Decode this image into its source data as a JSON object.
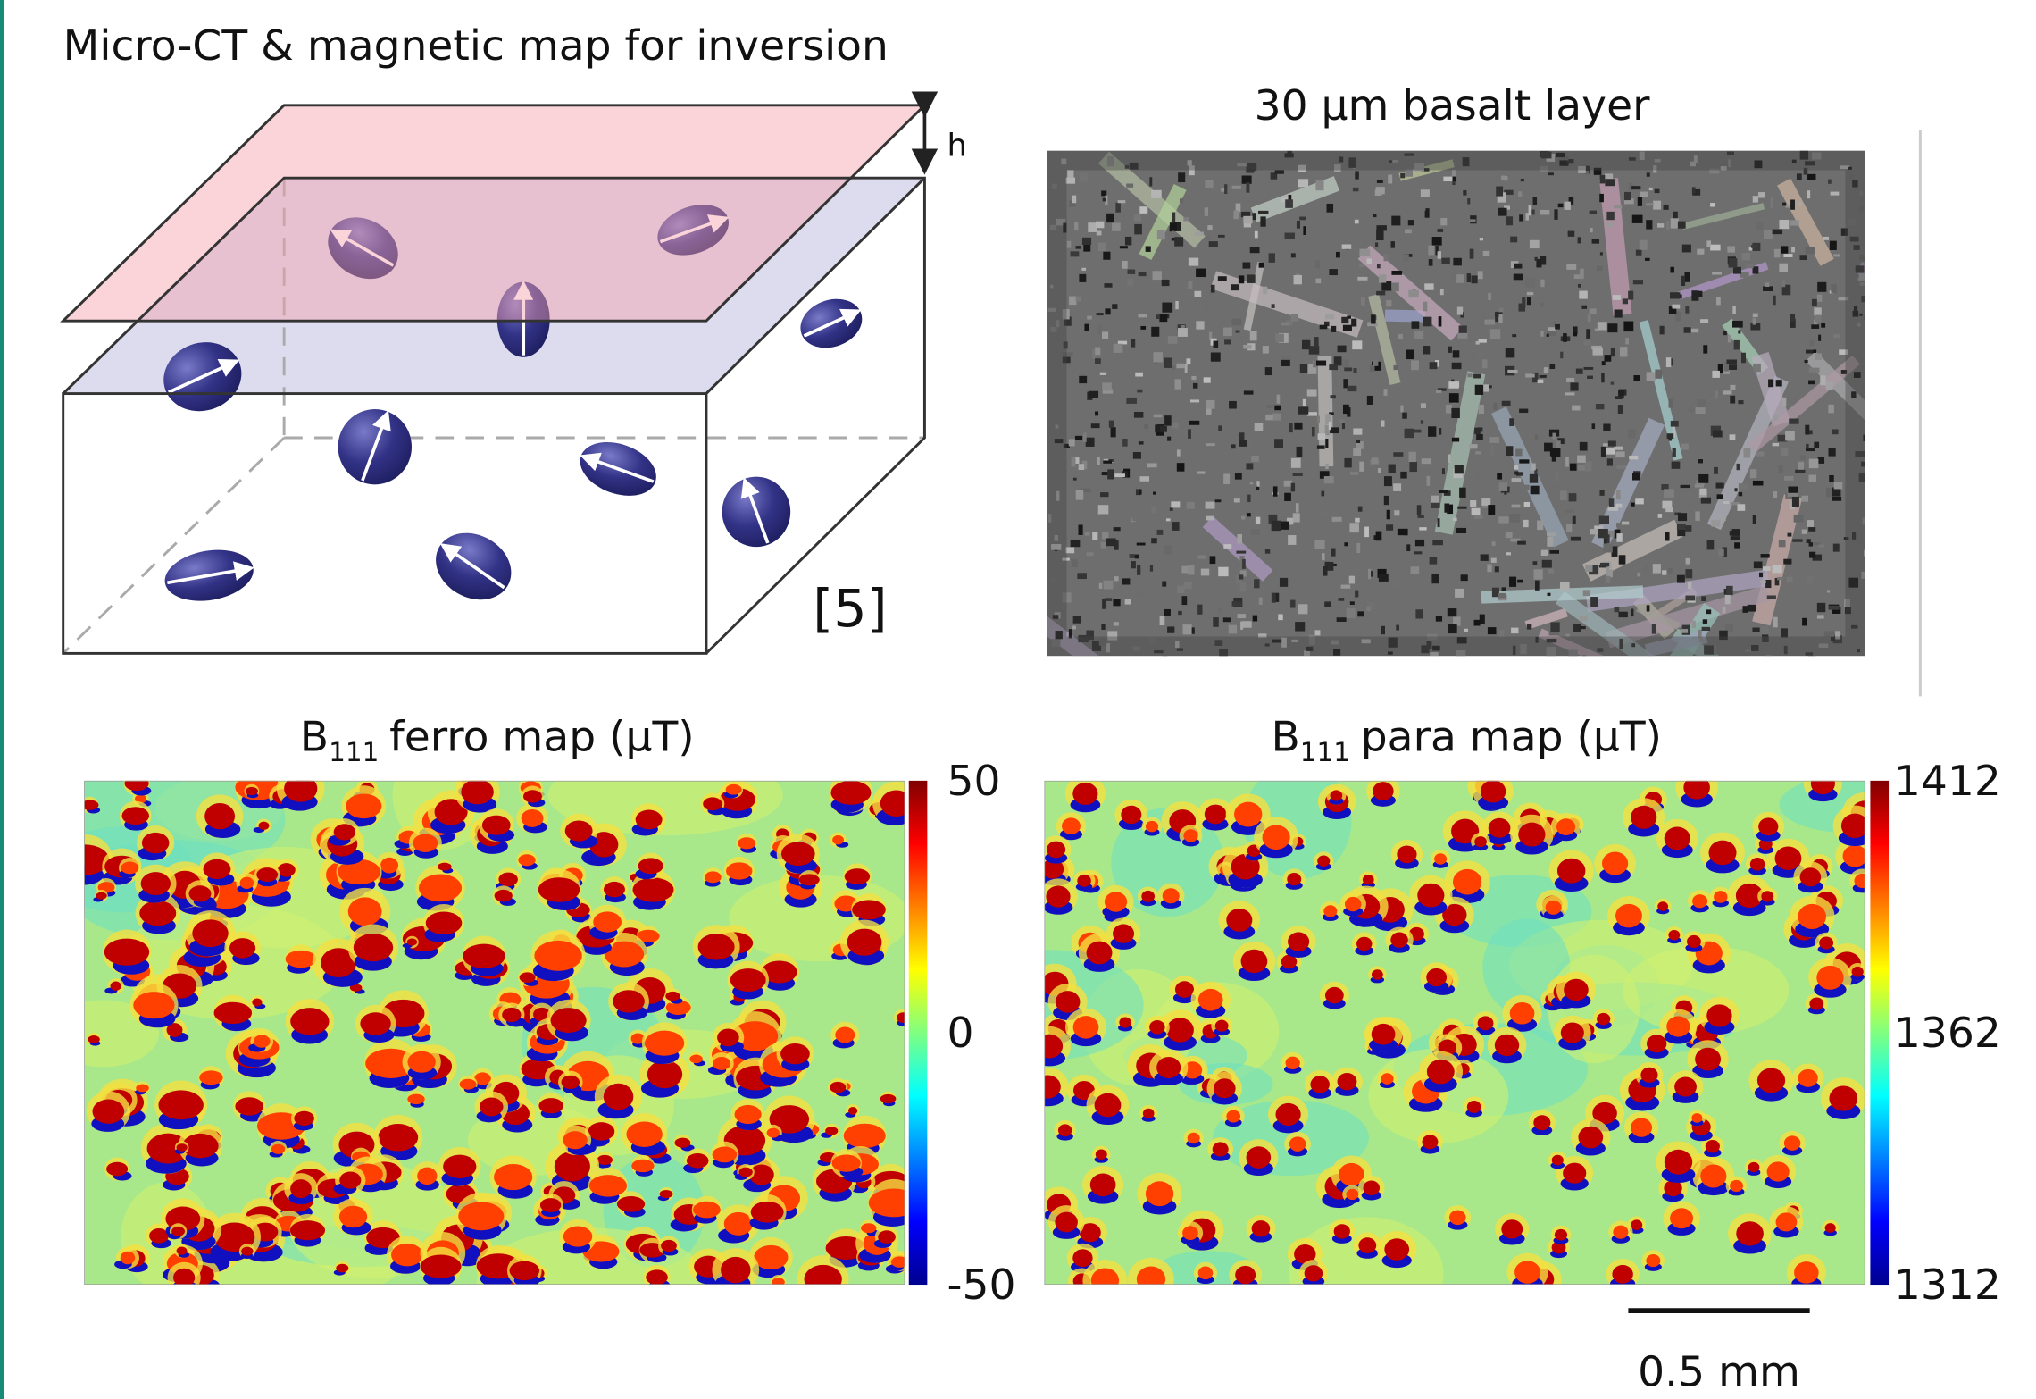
{
  "diagram": {
    "title": "Micro-CT & magnetic map for inversion",
    "height_label": "h",
    "citation": "[5]"
  },
  "basalt": {
    "title": "30 μm basalt layer"
  },
  "ferro_map": {
    "symbol": "B",
    "subscript": "111",
    "title": "ferro map (μT)",
    "colorbar_ticks": [
      50,
      0,
      -50
    ]
  },
  "para_map": {
    "symbol": "B",
    "subscript": "111",
    "title": "para map (μT)",
    "colorbar_ticks": [
      1412,
      1362,
      1312
    ]
  },
  "scale_bar": {
    "label": "0.5 mm"
  }
}
